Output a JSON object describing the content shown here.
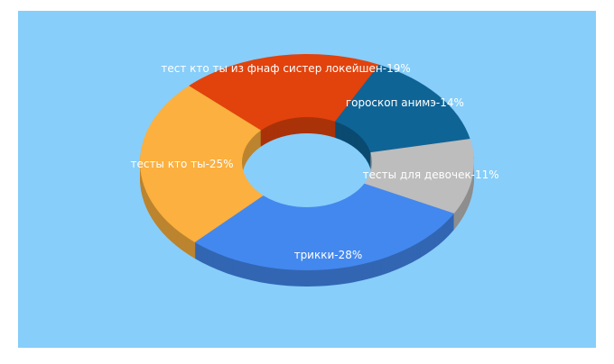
{
  "chart_data": {
    "type": "donut3d",
    "values": [
      19,
      14,
      11,
      28,
      25
    ],
    "value_labels": [
      "тест кто ты из фнаф систер локейшен-19%",
      "гороскоп анимэ-14%",
      "тесты для девочек-11%",
      "трикки-28%",
      "тесты кто ты-25%"
    ],
    "colors": [
      "#e2420c",
      "#0f6496",
      "#bdbdbd",
      "#4388ef",
      "#fbb03f"
    ]
  }
}
